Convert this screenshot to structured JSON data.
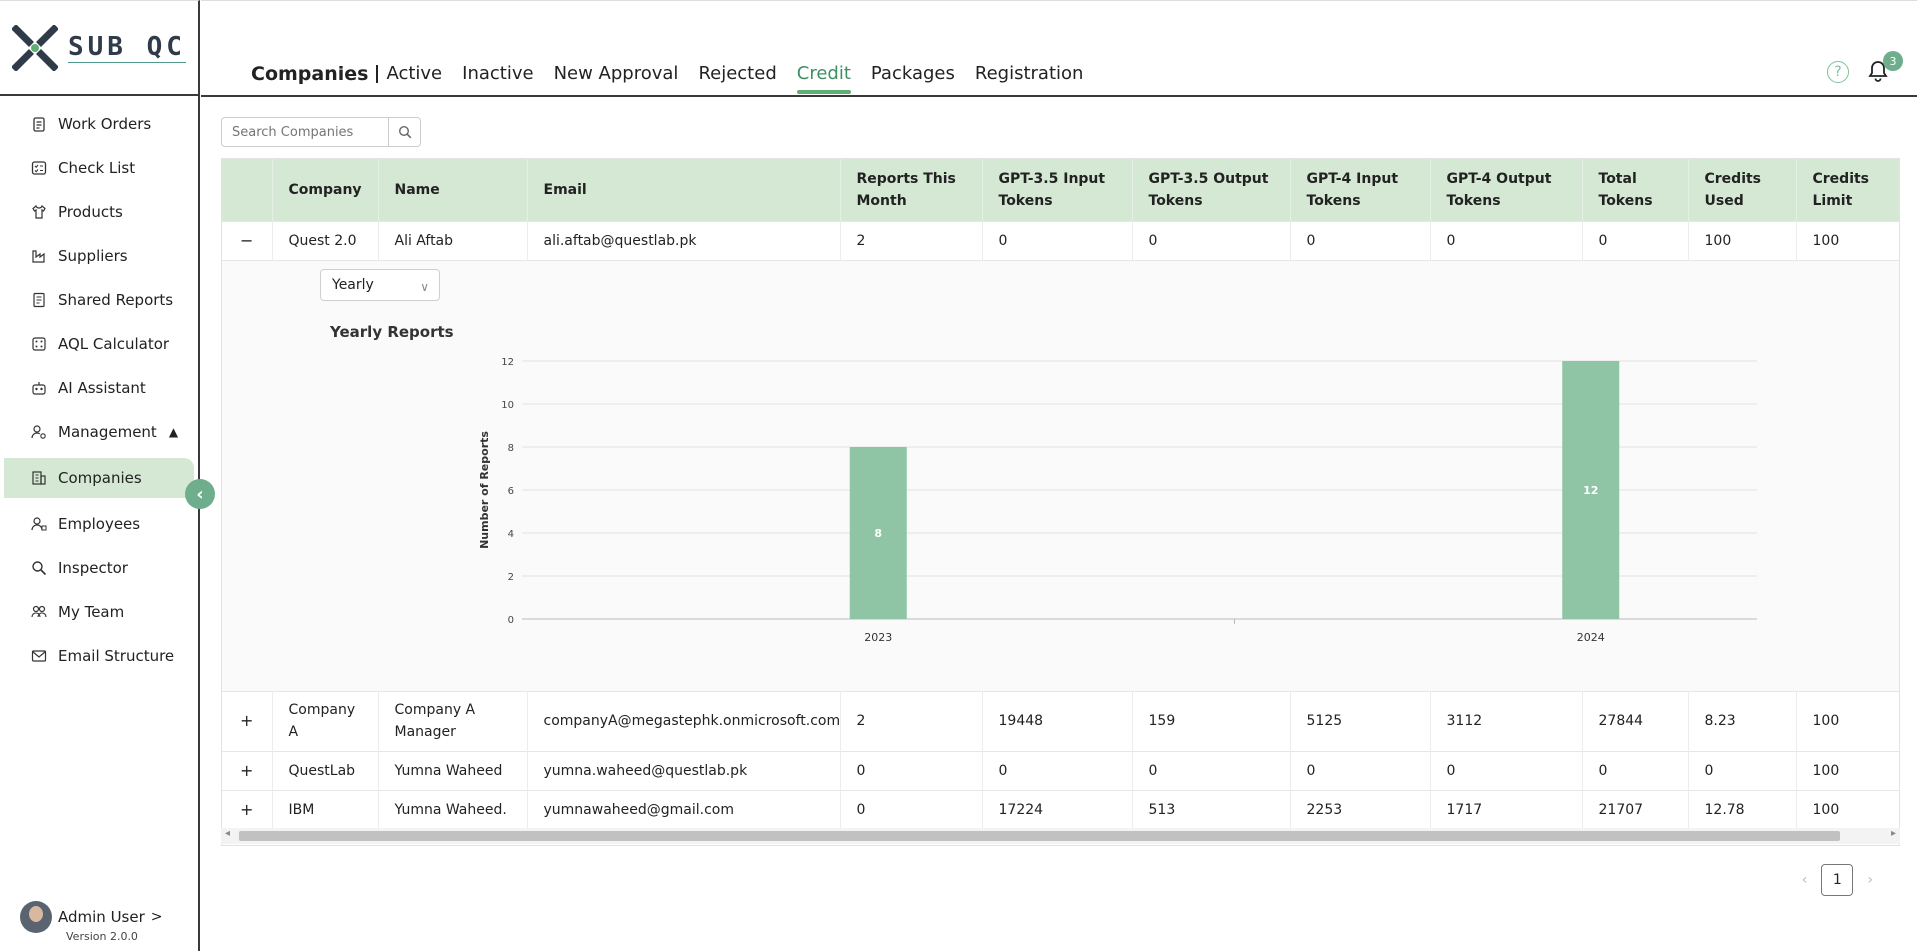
{
  "brand": {
    "logo_text": "SUB QC"
  },
  "sidebar": {
    "items": [
      {
        "label": "Work Orders",
        "icon": "clipboard-icon"
      },
      {
        "label": "Check List",
        "icon": "checklist-icon"
      },
      {
        "label": "Products",
        "icon": "shirt-icon"
      },
      {
        "label": "Suppliers",
        "icon": "factory-icon"
      },
      {
        "label": "Shared Reports",
        "icon": "report-icon"
      },
      {
        "label": "AQL Calculator",
        "icon": "calculator-icon"
      },
      {
        "label": "AI Assistant",
        "icon": "robot-icon"
      },
      {
        "label": "Management",
        "icon": "user-gear-icon"
      },
      {
        "label": "Companies",
        "icon": "building-icon"
      },
      {
        "label": "Employees",
        "icon": "employee-icon"
      },
      {
        "label": "Inspector",
        "icon": "search-icon"
      },
      {
        "label": "My Team",
        "icon": "team-icon"
      },
      {
        "label": "Email Structure",
        "icon": "mail-icon"
      }
    ],
    "user_name": "Admin User",
    "version": "Version 2.0.0"
  },
  "header": {
    "title": "Companies",
    "tabs": [
      "Active",
      "Inactive",
      "New Approval",
      "Rejected",
      "Credit",
      "Packages",
      "Registration"
    ],
    "active_tab": "Credit",
    "notification_count": "3",
    "help_label": "?"
  },
  "search": {
    "placeholder": "Search Companies"
  },
  "table": {
    "columns": [
      "Company",
      "Name",
      "Email",
      "Reports This Month",
      "GPT-3.5 Input Tokens",
      "GPT-3.5 Output Tokens",
      "GPT-4 Input Tokens",
      "GPT-4 Output Tokens",
      "Total Tokens",
      "Credits Used",
      "Credits Limit"
    ],
    "rows": [
      {
        "toggle": "−",
        "cells": [
          "Quest 2.0",
          "Ali Aftab",
          "ali.aftab@questlab.pk",
          "2",
          "0",
          "0",
          "0",
          "0",
          "0",
          "100",
          "100"
        ]
      },
      {
        "toggle": "+",
        "cells": [
          "Company A",
          "Company A Manager",
          "companyA@megastephk.onmicrosoft.com",
          "2",
          "19448",
          "159",
          "5125",
          "3112",
          "27844",
          "8.23",
          "100"
        ]
      },
      {
        "toggle": "+",
        "cells": [
          "QuestLab",
          "Yumna Waheed",
          "yumna.waheed@questlab.pk",
          "0",
          "0",
          "0",
          "0",
          "0",
          "0",
          "0",
          "100"
        ]
      },
      {
        "toggle": "+",
        "cells": [
          "IBM",
          "Yumna Waheed.",
          "yumnawaheed@gmail.com",
          "0",
          "17224",
          "513",
          "2253",
          "1717",
          "21707",
          "12.78",
          "100"
        ]
      }
    ]
  },
  "expanded": {
    "period_select": "Yearly"
  },
  "chart_data": {
    "type": "bar",
    "title": "Yearly Reports",
    "xlabel": "",
    "ylabel": "Number of Reports",
    "categories": [
      "2023",
      "2024"
    ],
    "values": [
      8,
      12
    ],
    "ylim": [
      0,
      12
    ],
    "yticks": [
      0,
      2,
      4,
      6,
      8,
      10,
      12
    ],
    "bar_color": "#8fc4a5",
    "grid": true
  },
  "pagination": {
    "current_page": "1"
  },
  "colors": {
    "accent": "#5fae74",
    "header_bg": "#d5e8d4"
  }
}
